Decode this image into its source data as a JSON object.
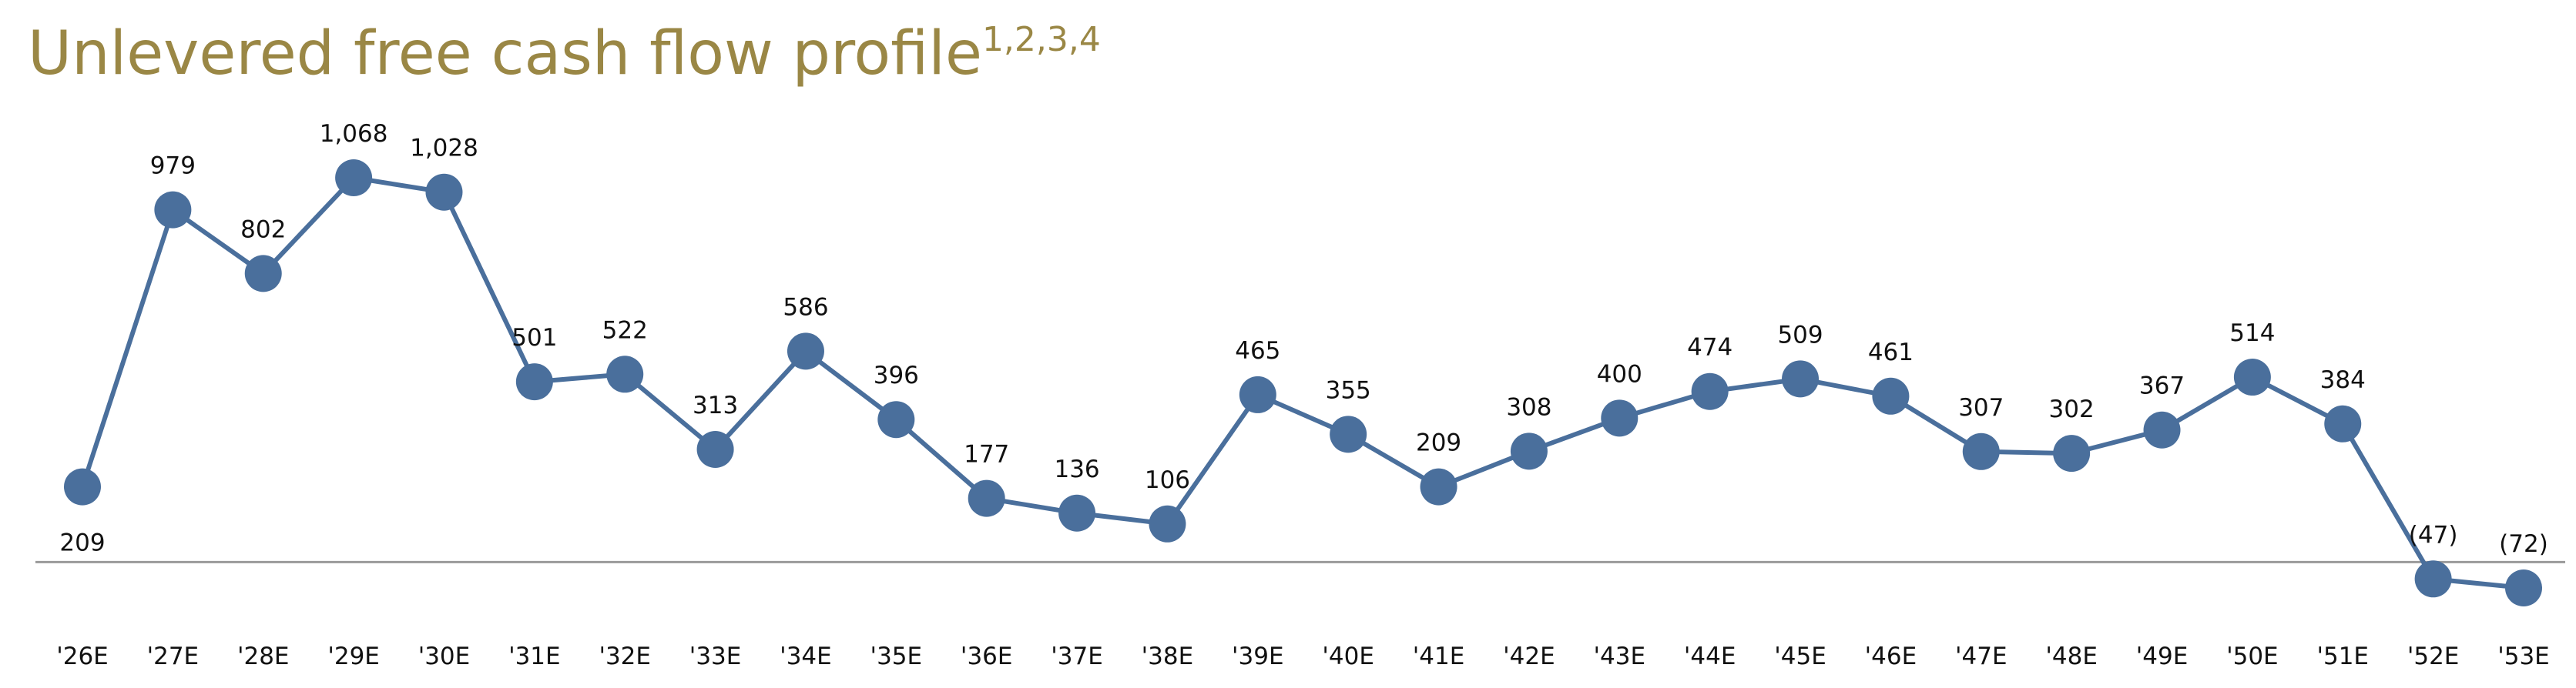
{
  "title": {
    "text": "Unlevered free cash flow profile",
    "superscript": "1,2,3,4"
  },
  "colors": {
    "title": "#9a8745",
    "series": "#4a6f9c",
    "baseline": "#9a9a9a"
  },
  "chart_data": {
    "type": "line",
    "title": "Unlevered free cash flow profile",
    "title_superscript": "1,2,3,4",
    "x": [
      "'26E",
      "'27E",
      "'28E",
      "'29E",
      "'30E",
      "'31E",
      "'32E",
      "'33E",
      "'34E",
      "'35E",
      "'36E",
      "'37E",
      "'38E",
      "'39E",
      "'40E",
      "'41E",
      "'42E",
      "'43E",
      "'44E",
      "'45E",
      "'46E",
      "'47E",
      "'48E",
      "'49E",
      "'50E",
      "'51E",
      "'52E",
      "'53E"
    ],
    "series": [
      {
        "values": [
          209,
          979,
          802,
          1068,
          1028,
          501,
          522,
          313,
          586,
          396,
          177,
          136,
          106,
          465,
          355,
          209,
          308,
          400,
          474,
          509,
          461,
          307,
          302,
          367,
          514,
          384,
          -47,
          -72
        ],
        "labels": [
          "209",
          "979",
          "802",
          "1,068",
          "1,028",
          "501",
          "522",
          "313",
          "586",
          "396",
          "177",
          "136",
          "106",
          "465",
          "355",
          "209",
          "308",
          "400",
          "474",
          "509",
          "461",
          "307",
          "302",
          "367",
          "514",
          "384",
          "(47)",
          "(72)"
        ]
      }
    ],
    "xlabel": "",
    "ylabel": "",
    "ylim": [
      -72,
      1068
    ],
    "baseline_value": 0,
    "grid": false,
    "legend": "none",
    "marker": "circle"
  }
}
